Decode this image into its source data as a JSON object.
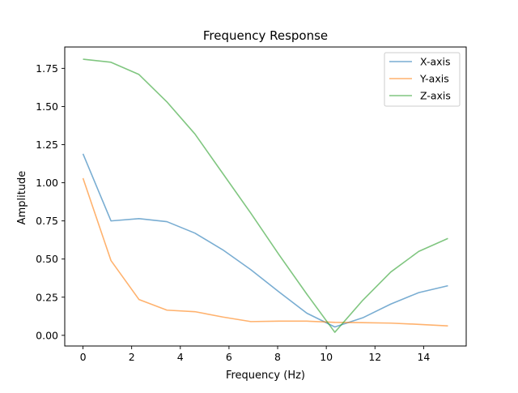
{
  "chart_data": {
    "type": "line",
    "title": "Frequency Response",
    "xlabel": "Frequency (Hz)",
    "ylabel": "Amplitude",
    "xlim": [
      -0.75,
      15.75
    ],
    "ylim": [
      -0.07,
      1.89
    ],
    "xticks": [
      0,
      2,
      4,
      6,
      8,
      10,
      12,
      14
    ],
    "yticks": [
      0.0,
      0.25,
      0.5,
      0.75,
      1.0,
      1.25,
      1.5,
      1.75
    ],
    "ytick_labels": [
      "0.00",
      "0.25",
      "0.50",
      "0.75",
      "1.00",
      "1.25",
      "1.50",
      "1.75"
    ],
    "grid": false,
    "legend": "top-right",
    "x": [
      0,
      1.15,
      2.3,
      3.45,
      4.6,
      5.75,
      6.9,
      8.05,
      9.2,
      10.35,
      11.5,
      12.65,
      13.8,
      15.0
    ],
    "series": [
      {
        "name": "X-axis",
        "color": "#1f77b4",
        "values": [
          1.19,
          0.75,
          0.765,
          0.745,
          0.67,
          0.56,
          0.43,
          0.285,
          0.145,
          0.055,
          0.115,
          0.205,
          0.28,
          0.325
        ]
      },
      {
        "name": "Y-axis",
        "color": "#ff7f0e",
        "values": [
          1.03,
          0.49,
          0.235,
          0.165,
          0.155,
          0.12,
          0.09,
          0.093,
          0.093,
          0.085,
          0.083,
          0.08,
          0.072,
          0.062
        ]
      },
      {
        "name": "Z-axis",
        "color": "#2ca02c",
        "values": [
          1.81,
          1.79,
          1.71,
          1.53,
          1.32,
          1.06,
          0.8,
          0.53,
          0.27,
          0.02,
          0.23,
          0.415,
          0.55,
          0.635
        ]
      }
    ]
  }
}
